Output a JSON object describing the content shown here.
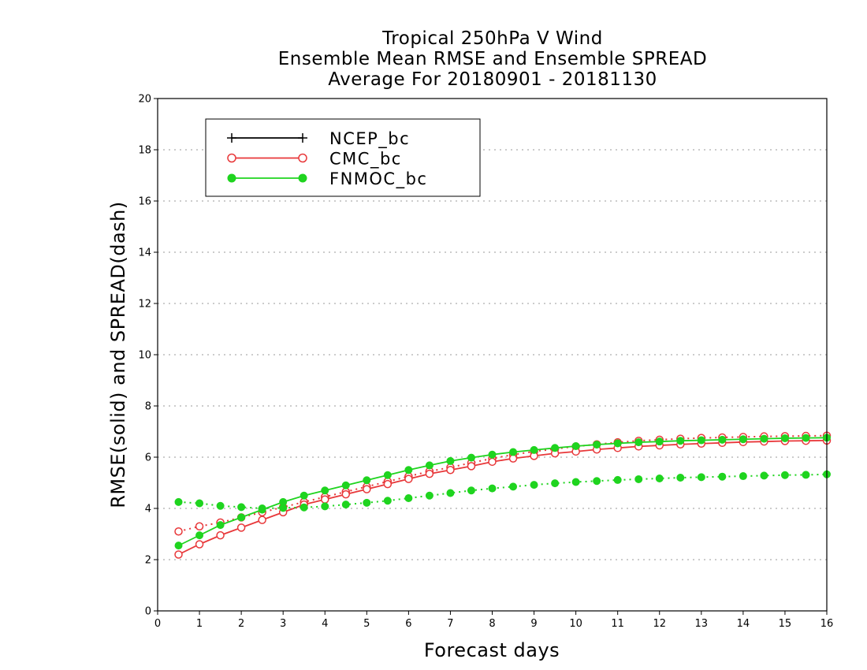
{
  "chart_data": {
    "type": "line",
    "title_lines": [
      "Tropical 250hPa V Wind",
      "Ensemble Mean RMSE and Ensemble SPREAD",
      "Average For 20180901 - 20181130"
    ],
    "xlabel": "Forecast days",
    "ylabel": "RMSE(solid) and SPREAD(dash)",
    "xlim": [
      0,
      16
    ],
    "ylim": [
      0,
      20
    ],
    "xticks": [
      0,
      1,
      2,
      3,
      4,
      5,
      6,
      7,
      8,
      9,
      10,
      11,
      12,
      13,
      14,
      15,
      16
    ],
    "yticks": [
      0,
      2,
      4,
      6,
      8,
      10,
      12,
      14,
      16,
      18,
      20
    ],
    "grid": "horizontal dotted",
    "legend_position": "top-left",
    "x": [
      0.5,
      1,
      1.5,
      2,
      2.5,
      3,
      3.5,
      4,
      4.5,
      5,
      5.5,
      6,
      6.5,
      7,
      7.5,
      8,
      8.5,
      9,
      9.5,
      10,
      10.5,
      11,
      11.5,
      12,
      12.5,
      13,
      13.5,
      14,
      14.5,
      15,
      15.5,
      16
    ],
    "series": [
      {
        "name": "NCEP_bc",
        "color": "#000000",
        "marker": "plus",
        "rmse": [],
        "spread": []
      },
      {
        "name": "CMC_bc",
        "color": "#e8383a",
        "marker": "open-circle",
        "rmse": [
          2.2,
          2.6,
          2.95,
          3.25,
          3.55,
          3.85,
          4.15,
          4.35,
          4.55,
          4.75,
          4.95,
          5.15,
          5.35,
          5.5,
          5.65,
          5.82,
          5.95,
          6.05,
          6.15,
          6.22,
          6.3,
          6.36,
          6.42,
          6.46,
          6.5,
          6.53,
          6.56,
          6.59,
          6.61,
          6.63,
          6.64,
          6.65
        ],
        "spread": [
          3.1,
          3.3,
          3.45,
          3.65,
          3.85,
          4.05,
          4.25,
          4.45,
          4.65,
          4.85,
          5.05,
          5.25,
          5.45,
          5.6,
          5.78,
          5.95,
          6.1,
          6.22,
          6.32,
          6.42,
          6.5,
          6.58,
          6.64,
          6.68,
          6.72,
          6.75,
          6.77,
          6.79,
          6.81,
          6.82,
          6.83,
          6.84
        ]
      },
      {
        "name": "FNMOC_bc",
        "color": "#1fd41f",
        "marker": "filled-circle",
        "rmse": [
          2.55,
          2.95,
          3.35,
          3.65,
          3.95,
          4.25,
          4.5,
          4.7,
          4.9,
          5.1,
          5.3,
          5.5,
          5.68,
          5.85,
          5.98,
          6.1,
          6.2,
          6.28,
          6.36,
          6.43,
          6.49,
          6.54,
          6.58,
          6.61,
          6.64,
          6.66,
          6.68,
          6.7,
          6.72,
          6.74,
          6.75,
          6.76
        ],
        "spread": [
          4.25,
          4.2,
          4.1,
          4.05,
          4.0,
          4.02,
          4.04,
          4.08,
          4.15,
          4.22,
          4.3,
          4.4,
          4.5,
          4.6,
          4.7,
          4.78,
          4.85,
          4.92,
          4.98,
          5.03,
          5.07,
          5.11,
          5.14,
          5.17,
          5.2,
          5.22,
          5.24,
          5.26,
          5.28,
          5.3,
          5.31,
          5.33
        ]
      }
    ]
  }
}
